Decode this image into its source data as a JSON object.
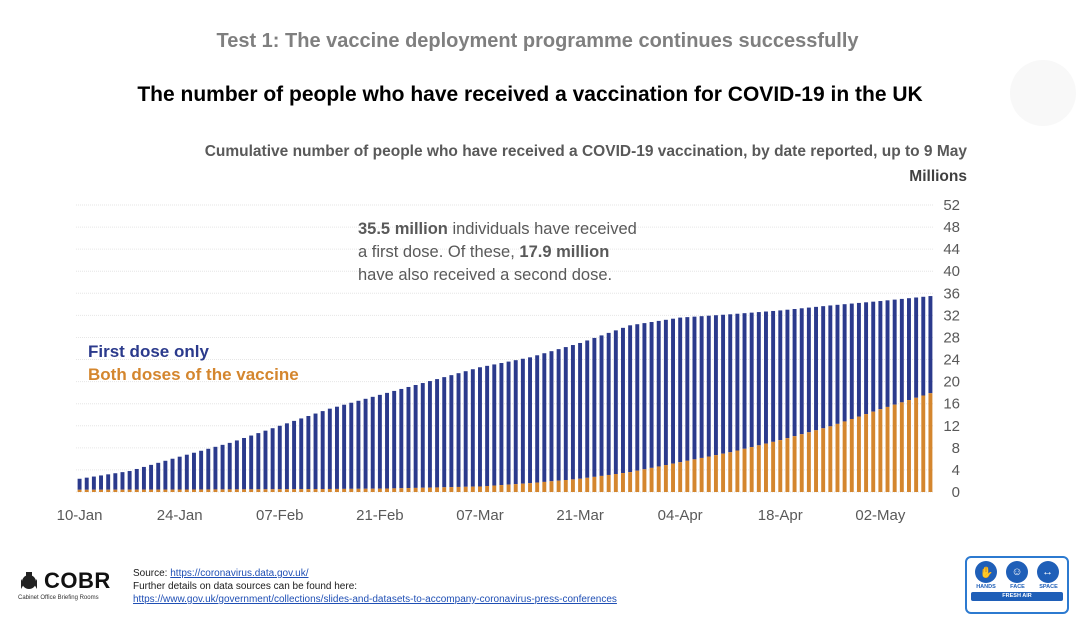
{
  "slide": {
    "heading": "Test 1: The vaccine deployment programme continues successfully",
    "title": "The number of people who have received a vaccination for COVID-19 in the UK",
    "subtitle": "Cumulative number of people who have received a COVID-19 vaccination, by date reported, up to 9 May",
    "units": "Millions"
  },
  "annotation": {
    "part1_bold": "35.5 million",
    "part2": " individuals have received",
    "part3": "a first dose. Of these, ",
    "part4_bold": "17.9 million",
    "part5": "have also received a second dose."
  },
  "legend": {
    "first": "First dose only",
    "both": "Both doses of the vaccine"
  },
  "footer": {
    "logo": "COBR",
    "logo_sub": "Cabinet Office Briefing Rooms",
    "source_label": "Source: ",
    "source_link": "https://coronavirus.data.gov.uk/",
    "further": "Further details on data sources can be found here:",
    "further_link": "https://www.gov.uk/government/collections/slides-and-datasets-to-accompany-coronavirus-press-conferences",
    "badge_hands": "HANDS",
    "badge_face": "FACE",
    "badge_space": "SPACE",
    "badge_bar": "FRESH AIR"
  },
  "colors": {
    "first_dose": "#2b3a8c",
    "both_doses": "#d4862e",
    "grid": "#e6e6e6",
    "axis_text": "#595959"
  },
  "chart_data": {
    "type": "bar",
    "stacked": true,
    "title": "Cumulative number of people who have received a COVID-19 vaccination, by date reported, up to 9 May",
    "ylabel": "Millions",
    "ylim": [
      0,
      52
    ],
    "y_ticks": [
      0,
      4,
      8,
      12,
      16,
      20,
      24,
      28,
      32,
      36,
      40,
      44,
      48,
      52
    ],
    "y_axis_side": "right",
    "grid": true,
    "x_start_date": "2021-01-10",
    "x_end_date": "2021-05-09",
    "x_tick_labels": [
      "10-Jan",
      "24-Jan",
      "07-Feb",
      "21-Feb",
      "07-Mar",
      "21-Mar",
      "04-Apr",
      "18-Apr",
      "02-May"
    ],
    "legend_position": "left",
    "series": [
      {
        "name": "First dose only",
        "description": "total who received at least a first dose (bar top)",
        "color": "#2b3a8c",
        "keypoints": [
          [
            "2021-01-10",
            2.4
          ],
          [
            "2021-01-17",
            3.8
          ],
          [
            "2021-01-24",
            6.4
          ],
          [
            "2021-01-31",
            8.9
          ],
          [
            "2021-02-07",
            12.0
          ],
          [
            "2021-02-14",
            15.1
          ],
          [
            "2021-02-21",
            17.6
          ],
          [
            "2021-02-28",
            20.1
          ],
          [
            "2021-03-07",
            22.6
          ],
          [
            "2021-03-14",
            24.4
          ],
          [
            "2021-03-21",
            27.0
          ],
          [
            "2021-03-28",
            30.2
          ],
          [
            "2021-04-04",
            31.6
          ],
          [
            "2021-04-11",
            32.2
          ],
          [
            "2021-04-18",
            32.9
          ],
          [
            "2021-04-25",
            33.8
          ],
          [
            "2021-05-02",
            34.6
          ],
          [
            "2021-05-09",
            35.5
          ]
        ]
      },
      {
        "name": "Both doses of the vaccine",
        "color": "#d4862e",
        "keypoints": [
          [
            "2021-01-10",
            0.4
          ],
          [
            "2021-01-24",
            0.45
          ],
          [
            "2021-02-07",
            0.5
          ],
          [
            "2021-02-21",
            0.6
          ],
          [
            "2021-03-07",
            1.0
          ],
          [
            "2021-03-14",
            1.6
          ],
          [
            "2021-03-21",
            2.4
          ],
          [
            "2021-03-28",
            3.6
          ],
          [
            "2021-04-04",
            5.4
          ],
          [
            "2021-04-11",
            7.2
          ],
          [
            "2021-04-18",
            9.4
          ],
          [
            "2021-04-25",
            11.9
          ],
          [
            "2021-05-02",
            15.0
          ],
          [
            "2021-05-09",
            17.9
          ]
        ]
      }
    ]
  }
}
